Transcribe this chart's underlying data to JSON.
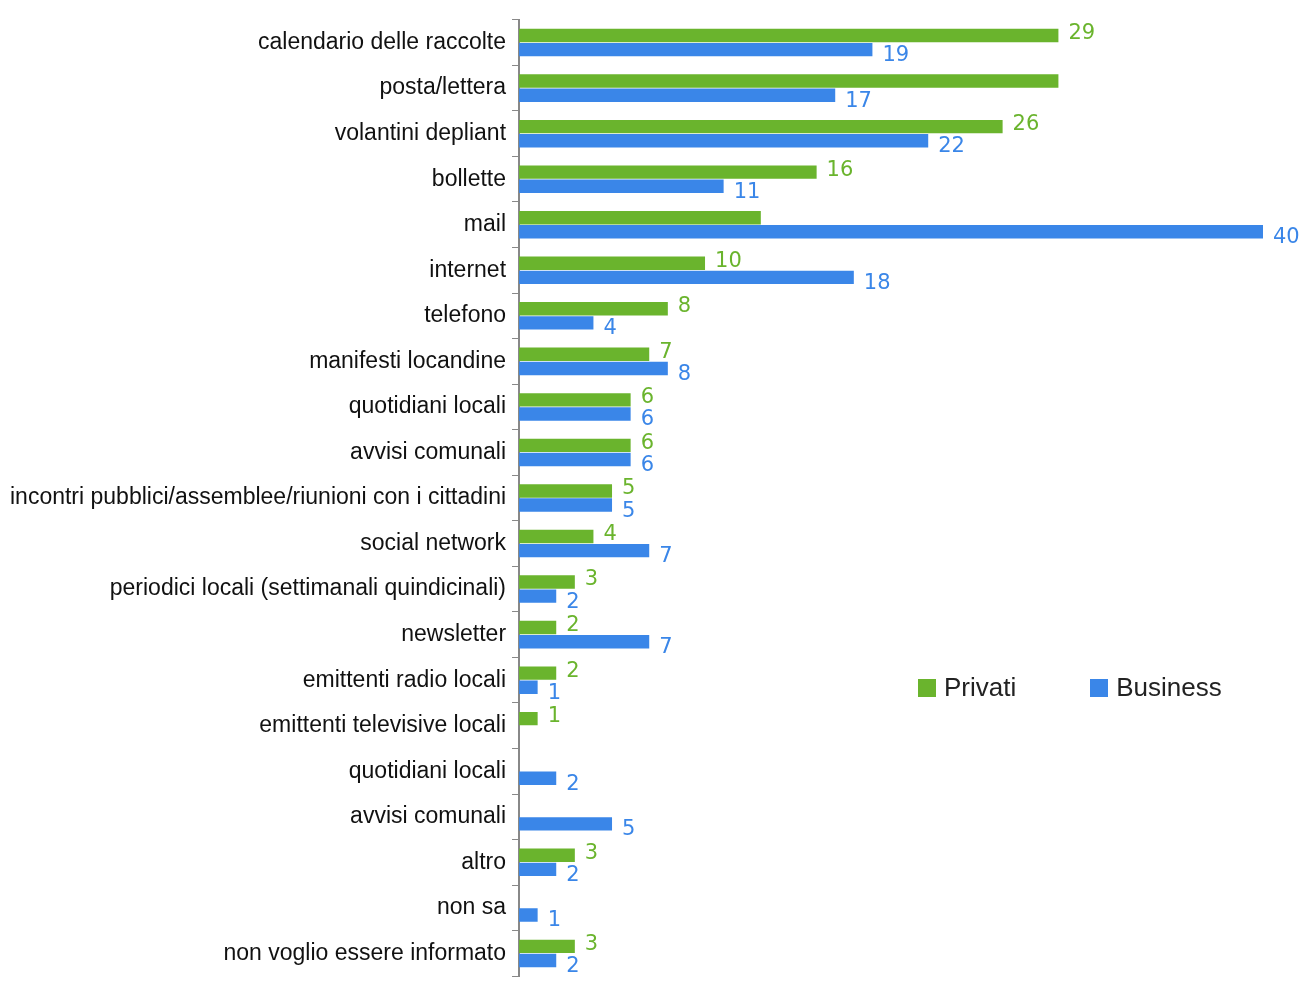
{
  "chart_data": {
    "type": "bar",
    "orientation": "horizontal",
    "legend": "right",
    "categories": [
      "calendario delle raccolte",
      "posta/lettera",
      "volantini depliant",
      "bollette",
      "mail",
      "internet",
      "telefono",
      "manifesti locandine",
      "quotidiani locali",
      "avvisi comunali",
      "incontri pubblici/assemblee/riunioni con i cittadini",
      "social network",
      "periodici locali (settimanali quindicinali)",
      "newsletter",
      "emittenti radio locali",
      "emittenti televisive locali",
      "quotidiani locali",
      "avvisi comunali",
      "altro",
      "non sa",
      "non voglio essere informato"
    ],
    "series": [
      {
        "name": "Privati",
        "color": "#6ab42d",
        "values": [
          29,
          29,
          26,
          16,
          13,
          10,
          8,
          7,
          6,
          6,
          5,
          4,
          3,
          2,
          2,
          1,
          null,
          null,
          3,
          null,
          3
        ],
        "value_labels": [
          "29",
          null,
          "26",
          "16",
          null,
          "10",
          "8",
          "7",
          "6",
          "6",
          "5",
          "4",
          "3",
          "2",
          "2",
          "1",
          null,
          null,
          "3",
          null,
          "3"
        ]
      },
      {
        "name": "Business",
        "color": "#3a86e8",
        "values": [
          19,
          17,
          22,
          11,
          40,
          18,
          4,
          8,
          6,
          6,
          5,
          7,
          2,
          7,
          1,
          null,
          2,
          5,
          2,
          1,
          2
        ],
        "value_labels": [
          "19",
          "17",
          "22",
          "11",
          "40",
          "18",
          "4",
          "8",
          "6",
          "6",
          "5",
          "7",
          "2",
          "7",
          "1",
          null,
          "2",
          "5",
          "2",
          "1",
          "2"
        ]
      }
    ]
  }
}
